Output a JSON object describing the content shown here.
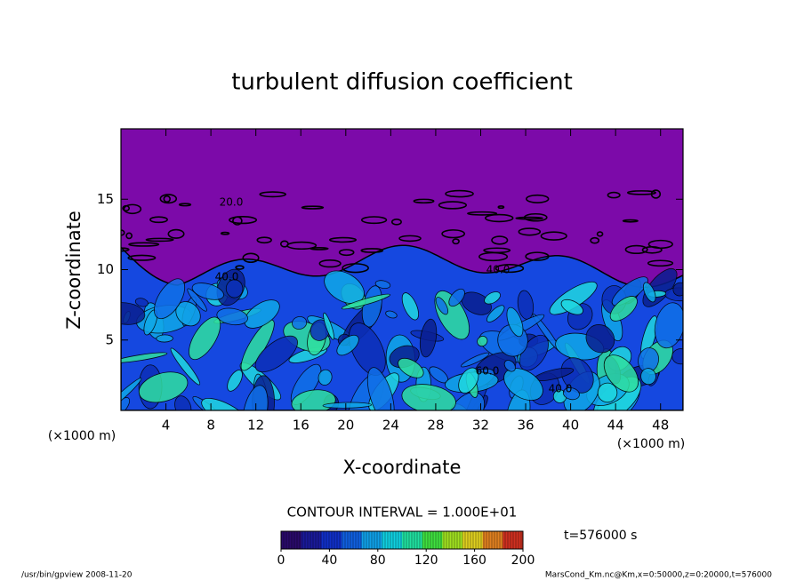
{
  "chart_data": {
    "type": "contour",
    "title": "turbulent diffusion coefficient",
    "x_label": "X-coordinate",
    "y_label": "Z-coordinate",
    "x_unit": "(×1000 m)",
    "y_unit": "(×1000 m)",
    "xlim": [
      0,
      50
    ],
    "xticks": [
      4,
      8,
      12,
      16,
      20,
      24,
      28,
      32,
      36,
      40,
      44,
      48
    ],
    "ylim": [
      0,
      20
    ],
    "yticks": [
      5,
      10,
      15
    ],
    "background_color": "#7c0aa9",
    "contour_labels": [
      "20.0",
      "40.0",
      "40.0",
      "60.0",
      "40.0"
    ],
    "contour_interval": "CONTOUR INTERVAL = 1.000E+01",
    "time_label": "t=576000 s",
    "colorbar": {
      "lim": [
        0,
        200
      ],
      "ticks": [
        0,
        40,
        80,
        120,
        160,
        200
      ],
      "colors": [
        "#2a0a6a",
        "#1a1a9a",
        "#1030c8",
        "#1060e0",
        "#10a0e8",
        "#10d0e0",
        "#20e0a0",
        "#40e040",
        "#a0e020",
        "#e0d020",
        "#e08020",
        "#d03020"
      ]
    },
    "footer_left": "/usr/bin/gpview   2008-11-20",
    "footer_right": "MarsCond_Km.nc@Km,x=0:50000,z=0:20000,t=576000"
  }
}
